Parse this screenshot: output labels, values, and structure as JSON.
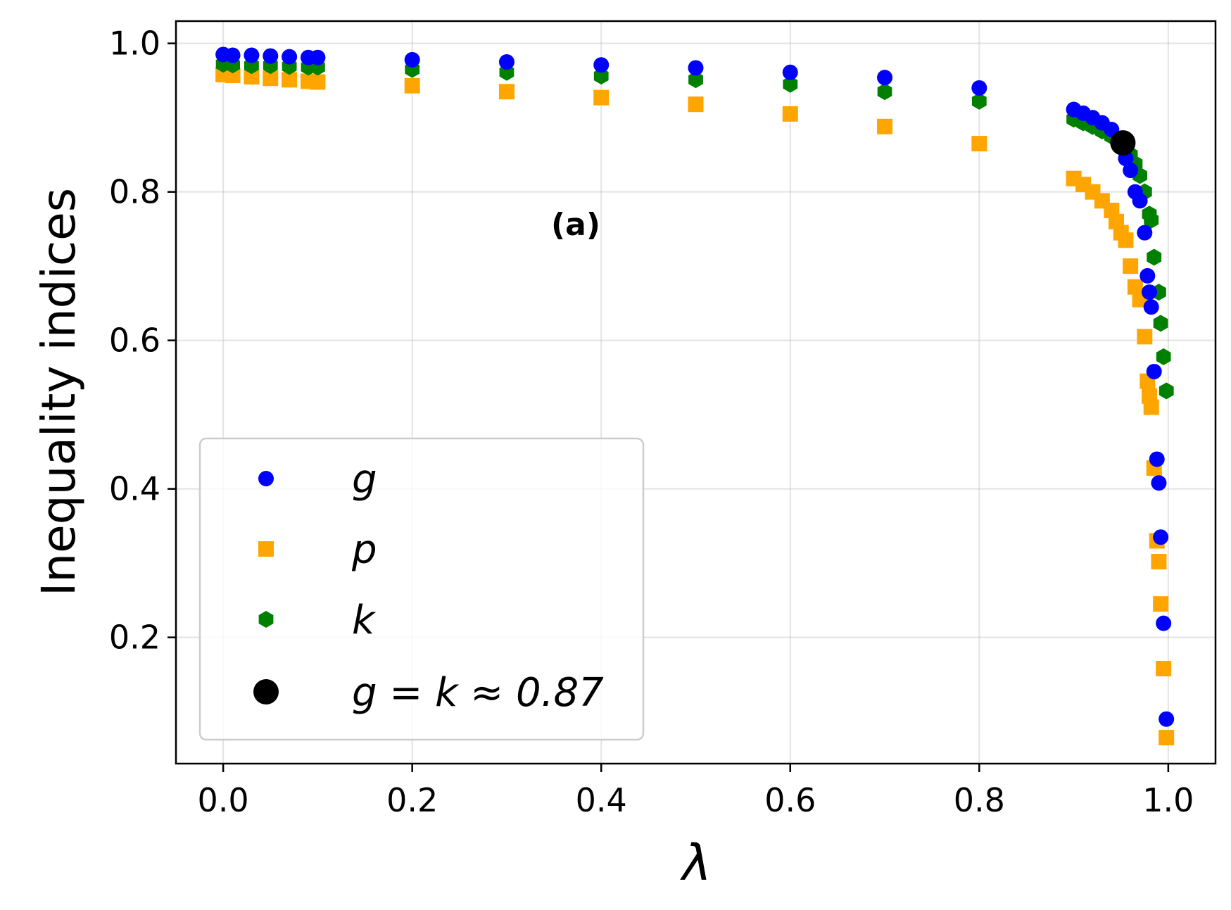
{
  "chart_data": {
    "type": "scatter",
    "title": "",
    "panel_label": "(a)",
    "xlabel": "λ",
    "ylabel": "Inequality indices",
    "xlim": [
      -0.05,
      1.05
    ],
    "ylim": [
      0.03,
      1.03
    ],
    "xticks": [
      {
        "value": 0.0,
        "label": "0.0"
      },
      {
        "value": 0.2,
        "label": "0.2"
      },
      {
        "value": 0.4,
        "label": "0.4"
      },
      {
        "value": 0.6,
        "label": "0.6"
      },
      {
        "value": 0.8,
        "label": "0.8"
      },
      {
        "value": 1.0,
        "label": "1.0"
      }
    ],
    "yticks": [
      {
        "value": 0.2,
        "label": "0.2"
      },
      {
        "value": 0.4,
        "label": "0.4"
      },
      {
        "value": 0.6,
        "label": "0.6"
      },
      {
        "value": 0.8,
        "label": "0.8"
      },
      {
        "value": 1.0,
        "label": "1.0"
      }
    ],
    "grid": true,
    "legend_position": "lower-left",
    "series": [
      {
        "name": "g",
        "marker": "circle",
        "color": "#0000ff",
        "x": [
          0.0,
          0.01,
          0.03,
          0.05,
          0.07,
          0.09,
          0.1,
          0.2,
          0.3,
          0.4,
          0.5,
          0.6,
          0.7,
          0.8,
          0.9,
          0.91,
          0.92,
          0.93,
          0.94,
          0.95,
          0.955,
          0.96,
          0.965,
          0.97,
          0.975,
          0.978,
          0.98,
          0.982,
          0.985,
          0.988,
          0.99,
          0.992,
          0.995,
          0.998
        ],
        "y": [
          0.985,
          0.984,
          0.984,
          0.983,
          0.982,
          0.981,
          0.981,
          0.978,
          0.975,
          0.971,
          0.967,
          0.961,
          0.954,
          0.94,
          0.911,
          0.906,
          0.9,
          0.893,
          0.884,
          0.867,
          0.845,
          0.829,
          0.8,
          0.788,
          0.745,
          0.687,
          0.665,
          0.645,
          0.558,
          0.44,
          0.408,
          0.335,
          0.219,
          0.09
        ]
      },
      {
        "name": "p",
        "marker": "square",
        "color": "#ffa500",
        "x": [
          0.0,
          0.01,
          0.03,
          0.05,
          0.07,
          0.09,
          0.1,
          0.2,
          0.3,
          0.4,
          0.5,
          0.6,
          0.7,
          0.8,
          0.9,
          0.91,
          0.92,
          0.93,
          0.94,
          0.945,
          0.95,
          0.955,
          0.96,
          0.965,
          0.97,
          0.975,
          0.978,
          0.98,
          0.982,
          0.985,
          0.988,
          0.99,
          0.992,
          0.995,
          0.998
        ],
        "y": [
          0.958,
          0.957,
          0.955,
          0.953,
          0.951,
          0.949,
          0.948,
          0.943,
          0.935,
          0.927,
          0.918,
          0.905,
          0.888,
          0.865,
          0.818,
          0.81,
          0.8,
          0.788,
          0.775,
          0.76,
          0.745,
          0.735,
          0.7,
          0.672,
          0.655,
          0.605,
          0.545,
          0.525,
          0.51,
          0.428,
          0.33,
          0.302,
          0.245,
          0.158,
          0.065
        ]
      },
      {
        "name": "k",
        "marker": "hexagon",
        "color": "#008000",
        "x": [
          0.0,
          0.01,
          0.03,
          0.05,
          0.07,
          0.09,
          0.1,
          0.2,
          0.3,
          0.4,
          0.5,
          0.6,
          0.7,
          0.8,
          0.9,
          0.91,
          0.92,
          0.93,
          0.94,
          0.95,
          0.96,
          0.965,
          0.97,
          0.975,
          0.98,
          0.982,
          0.985,
          0.99,
          0.992,
          0.995,
          0.998
        ],
        "y": [
          0.972,
          0.971,
          0.97,
          0.97,
          0.969,
          0.968,
          0.968,
          0.965,
          0.961,
          0.956,
          0.951,
          0.945,
          0.935,
          0.922,
          0.898,
          0.893,
          0.888,
          0.882,
          0.875,
          0.867,
          0.85,
          0.838,
          0.822,
          0.8,
          0.77,
          0.762,
          0.712,
          0.665,
          0.623,
          0.578,
          0.532
        ]
      }
    ],
    "highlight": {
      "name": "g = k ≈ 0.87",
      "marker": "circle",
      "color": "#000000",
      "x": 0.952,
      "y": 0.866
    },
    "legend": [
      {
        "label": "g",
        "marker": "circle",
        "color": "#0000ff"
      },
      {
        "label": "p",
        "marker": "square",
        "color": "#ffa500"
      },
      {
        "label": "k",
        "marker": "hexagon",
        "color": "#008000"
      },
      {
        "label": "g = k ≈ 0.87",
        "marker": "circle-large",
        "color": "#000000"
      }
    ]
  }
}
